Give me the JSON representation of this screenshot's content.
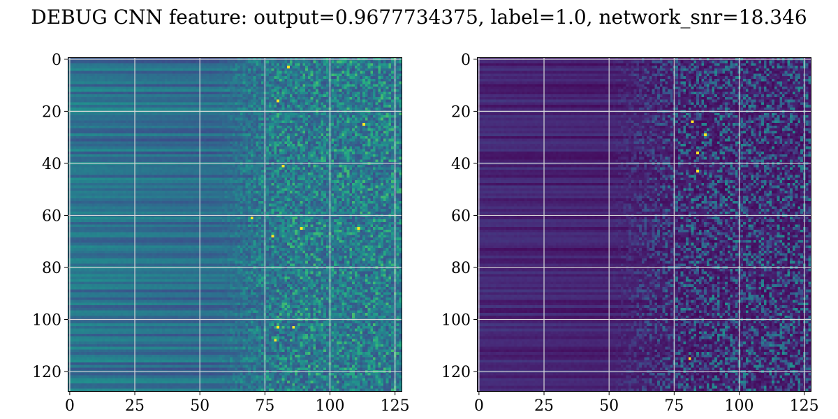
{
  "figure": {
    "title": "DEBUG CNN feature: output=0.9677734375, label=1.0, network_snr=18.346"
  },
  "chart_data": [
    {
      "type": "heatmap",
      "rows": 128,
      "cols": 128,
      "colormap": "viridis",
      "xlim": [
        -0.5,
        127.5
      ],
      "ylim": [
        127.5,
        -0.5
      ],
      "xticks": [
        0,
        25,
        50,
        75,
        100,
        125
      ],
      "yticks": [
        0,
        20,
        40,
        60,
        80,
        100,
        120
      ],
      "grid": true,
      "grid_color": "#d8d8d8",
      "description_of_values": "smooth banded structure for columns 0-50, noisy speckled activations for columns 70-127",
      "peak_cells": [
        [
          3,
          84
        ],
        [
          16,
          80
        ],
        [
          25,
          113
        ],
        [
          41,
          82
        ],
        [
          61,
          70
        ],
        [
          65,
          89
        ],
        [
          65,
          111
        ],
        [
          68,
          78
        ],
        [
          103,
          80
        ],
        [
          103,
          86
        ],
        [
          108,
          79
        ]
      ]
    },
    {
      "type": "heatmap",
      "rows": 128,
      "cols": 128,
      "colormap": "viridis",
      "xlim": [
        -0.5,
        127.5
      ],
      "ylim": [
        127.5,
        -0.5
      ],
      "xticks": [
        0,
        25,
        50,
        75,
        100,
        125
      ],
      "yticks": [
        0,
        20,
        40,
        60,
        80,
        100,
        120
      ],
      "grid": true,
      "grid_color": "#d8d8d8",
      "description_of_values": "mostly dark purple low values with faint horizontal bands, sparse bright speckles for columns 75-127",
      "peak_cells": [
        [
          24,
          82
        ],
        [
          29,
          87
        ],
        [
          36,
          84
        ],
        [
          43,
          84
        ],
        [
          115,
          81
        ]
      ]
    }
  ]
}
